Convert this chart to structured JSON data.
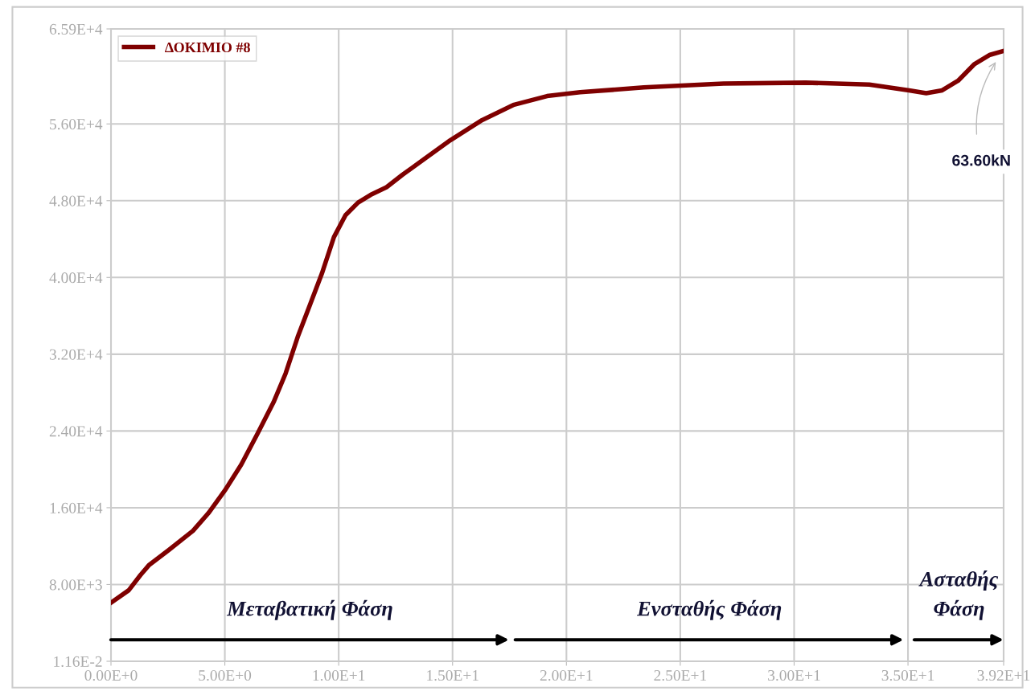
{
  "chart_data": {
    "type": "line",
    "series": [
      {
        "name": "ΔΟΚΙΜΙΟ #8",
        "color": "#7f0000",
        "x": [
          0,
          0.78,
          1.3,
          1.66,
          2.54,
          3.6,
          4.3,
          5.0,
          5.72,
          6.43,
          7.14,
          7.67,
          8.2,
          8.73,
          9.26,
          9.79,
          10.3,
          10.85,
          11.4,
          12.1,
          12.8,
          13.85,
          14.9,
          16.3,
          17.7,
          19.15,
          20.6,
          23.4,
          26.9,
          30.5,
          33.3,
          35.05,
          35.8,
          36.5,
          37.2,
          37.9,
          38.6,
          39.2
        ],
        "values": [
          6100,
          7400,
          9000,
          10000,
          11600,
          13600,
          15500,
          17800,
          20500,
          23700,
          27000,
          30000,
          33800,
          37100,
          40400,
          44200,
          46500,
          47800,
          48600,
          49400,
          50700,
          52500,
          54300,
          56400,
          58000,
          58900,
          59300,
          59800,
          60200,
          60300,
          60100,
          59500,
          59200,
          59500,
          60500,
          62200,
          63200,
          63600
        ]
      }
    ],
    "xlim": [
      0,
      39.2
    ],
    "xticks": [
      {
        "value": 0,
        "label": "0.00E+0"
      },
      {
        "value": 5,
        "label": "5.00E+0"
      },
      {
        "value": 10,
        "label": "1.00E+1"
      },
      {
        "value": 15,
        "label": "1.50E+1"
      },
      {
        "value": 20,
        "label": "2.00E+1"
      },
      {
        "value": 25,
        "label": "2.50E+1"
      },
      {
        "value": 30,
        "label": "3.00E+1"
      },
      {
        "value": 35,
        "label": "3.50E+1"
      },
      {
        "value": 39.2,
        "label": "3.92E+1"
      }
    ],
    "ylim": [
      0.0116,
      65900
    ],
    "yticks": [
      {
        "value": 0.0116,
        "label": "1.16E-2"
      },
      {
        "value": 8000,
        "label": "8.00E+3"
      },
      {
        "value": 16000,
        "label": "1.60E+4"
      },
      {
        "value": 24000,
        "label": "2.40E+4"
      },
      {
        "value": 32000,
        "label": "3.20E+4"
      },
      {
        "value": 40000,
        "label": "4.00E+4"
      },
      {
        "value": 48000,
        "label": "4.80E+4"
      },
      {
        "value": 56000,
        "label": "5.60E+4"
      },
      {
        "value": 65900,
        "label": "6.59E+4"
      }
    ],
    "annotations": [
      "63.60kN",
      "Μεταβατική Φάση",
      "Ενσταθής Φάση",
      "Ασταθής\nΦάση"
    ],
    "grid": true,
    "legend": "top left",
    "marker": "none",
    "line_style": "solid"
  }
}
